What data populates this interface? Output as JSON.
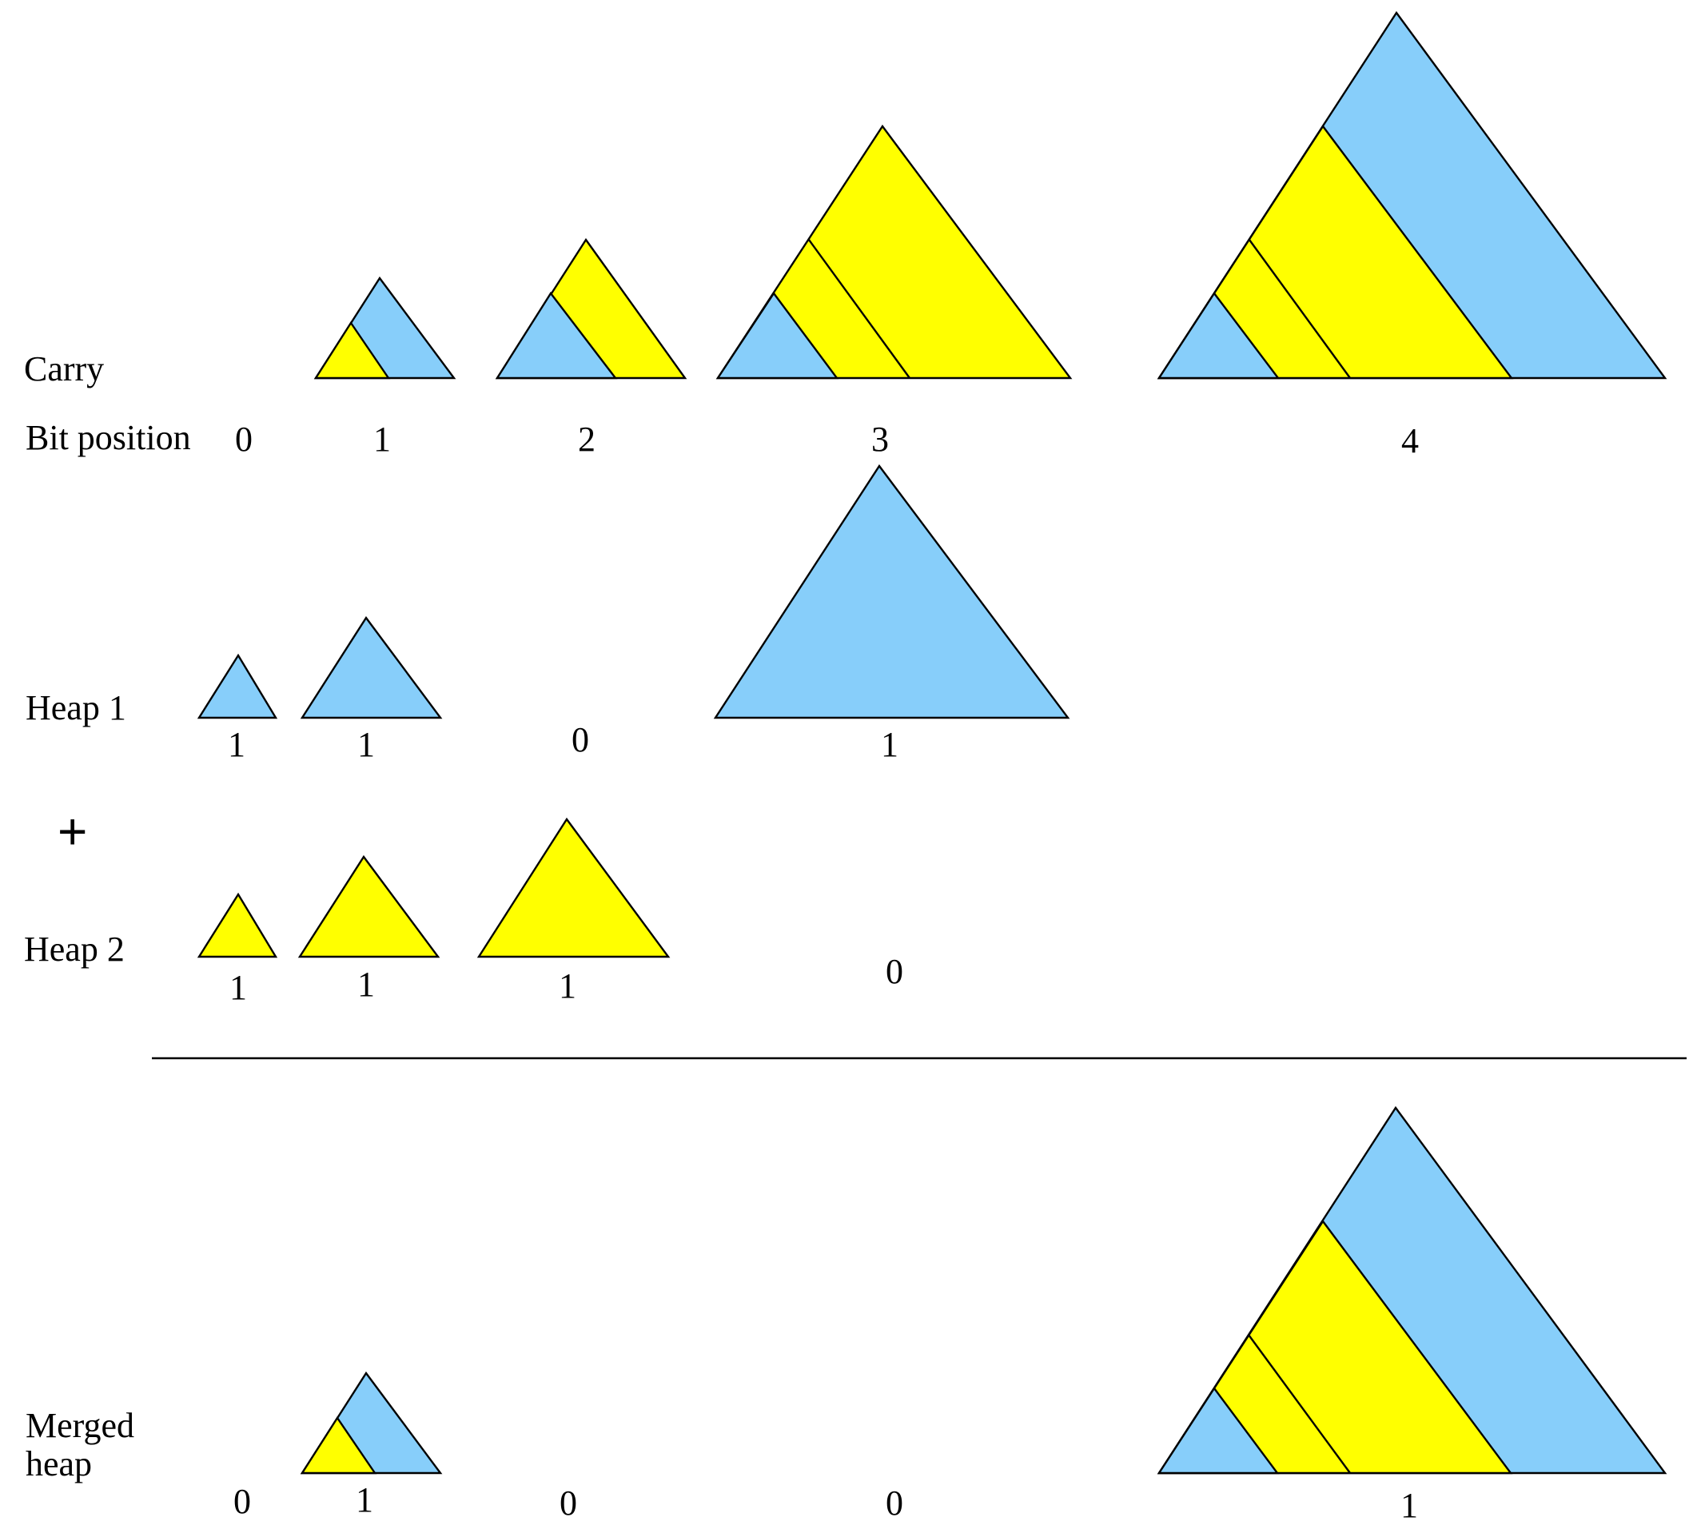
{
  "colors": {
    "blue": "#87CEFA",
    "yellow": "#FFFF00",
    "outline": "#000000"
  },
  "labels": {
    "carry": "Carry",
    "bit_position": "Bit position",
    "heap1": "Heap 1",
    "plus": "+",
    "heap2": "Heap 2",
    "merged_line1": "Merged",
    "merged_line2": "heap"
  },
  "rows": {
    "bit_positions": [
      "0",
      "1",
      "2",
      "3",
      "4"
    ],
    "heap1_bits": [
      "1",
      "1",
      "0",
      "1"
    ],
    "heap2_bits": [
      "1",
      "1",
      "1",
      "0"
    ],
    "merged_bits": [
      "0",
      "1",
      "0",
      "0",
      "1"
    ]
  },
  "trees": {
    "carry": [
      {
        "order": 1,
        "composition": [
          "yellow",
          "blue"
        ]
      },
      {
        "order": 2,
        "composition": [
          "blue",
          "yellow"
        ]
      },
      {
        "order": 3,
        "composition": [
          "blue",
          "yellow",
          "yellow"
        ]
      },
      {
        "order": 4,
        "composition": [
          "blue",
          "yellow",
          "yellow",
          "blue"
        ]
      }
    ],
    "heap1": [
      {
        "order": 0,
        "composition": [
          "blue"
        ]
      },
      {
        "order": 1,
        "composition": [
          "blue"
        ]
      },
      {
        "order": 3,
        "composition": [
          "blue"
        ]
      }
    ],
    "heap2": [
      {
        "order": 0,
        "composition": [
          "yellow"
        ]
      },
      {
        "order": 1,
        "composition": [
          "yellow"
        ]
      },
      {
        "order": 2,
        "composition": [
          "yellow"
        ]
      }
    ],
    "merged": [
      {
        "order": 1,
        "composition": [
          "yellow",
          "blue"
        ]
      },
      {
        "order": 4,
        "composition": [
          "blue",
          "yellow",
          "yellow",
          "blue"
        ]
      }
    ]
  }
}
